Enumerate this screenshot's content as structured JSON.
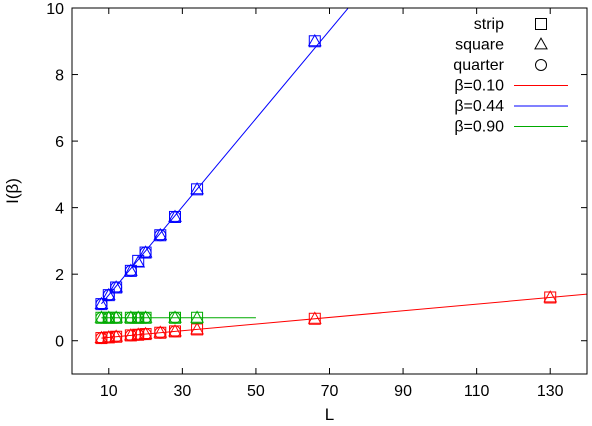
{
  "chart_data": {
    "type": "scatter",
    "title": "",
    "xlabel": "L",
    "ylabel": "I(β)",
    "xlim": [
      0,
      140
    ],
    "ylim": [
      -1,
      10
    ],
    "x_ticks": [
      10,
      30,
      50,
      70,
      90,
      110,
      130
    ],
    "y_ticks": [
      0,
      2,
      4,
      6,
      8,
      10
    ],
    "grid": false,
    "legend_position": "top-right",
    "marker_legend": [
      {
        "name": "strip",
        "marker": "square"
      },
      {
        "name": "square",
        "marker": "triangle"
      },
      {
        "name": "quarter",
        "marker": "circle"
      }
    ],
    "series": [
      {
        "name": "β=0.10",
        "color": "#ff0000",
        "fit_line": {
          "slope": 0.01,
          "intercept": 0.0,
          "x_range": [
            8,
            140
          ]
        },
        "strip": {
          "x": [
            8,
            10,
            12,
            16,
            18,
            20,
            24,
            28,
            34,
            66,
            130
          ],
          "y": [
            0.08,
            0.1,
            0.12,
            0.16,
            0.18,
            0.2,
            0.24,
            0.28,
            0.34,
            0.66,
            1.3
          ]
        },
        "square": {
          "x": [
            8,
            10,
            12,
            16,
            18,
            20,
            24,
            28,
            34,
            66,
            130
          ],
          "y": [
            0.08,
            0.1,
            0.12,
            0.16,
            0.18,
            0.2,
            0.24,
            0.28,
            0.34,
            0.66,
            1.3
          ]
        },
        "quarter": {
          "x": [
            8,
            10,
            12,
            16,
            18,
            20,
            24,
            28
          ],
          "y": [
            0.08,
            0.1,
            0.12,
            0.16,
            0.18,
            0.2,
            0.24,
            0.28
          ]
        }
      },
      {
        "name": "β=0.44",
        "color": "#0000ff",
        "fit_line": {
          "slope": 0.1325,
          "intercept": 0.05,
          "x_range": [
            8,
            75
          ]
        },
        "strip": {
          "x": [
            8,
            10,
            12,
            16,
            18,
            20,
            24,
            28,
            34,
            66
          ],
          "y": [
            1.1,
            1.37,
            1.6,
            2.1,
            2.4,
            2.65,
            3.17,
            3.72,
            4.55,
            9.0
          ]
        },
        "square": {
          "x": [
            8,
            10,
            12,
            16,
            18,
            20,
            24,
            28,
            34,
            66
          ],
          "y": [
            1.1,
            1.37,
            1.6,
            2.1,
            2.35,
            2.65,
            3.17,
            3.72,
            4.55,
            9.0
          ]
        },
        "quarter": {
          "x": [
            8,
            10,
            12,
            16,
            20,
            24,
            28
          ],
          "y": [
            1.1,
            1.37,
            1.6,
            2.1,
            2.65,
            3.17,
            3.72
          ]
        }
      },
      {
        "name": "β=0.90",
        "color": "#00aa00",
        "fit_line": {
          "slope": 0.0,
          "intercept": 0.69,
          "x_range": [
            8,
            50
          ]
        },
        "strip": {
          "x": [
            8,
            10,
            12,
            16,
            18,
            20,
            28,
            34
          ],
          "y": [
            0.69,
            0.69,
            0.69,
            0.69,
            0.69,
            0.69,
            0.69,
            0.69
          ]
        },
        "square": {
          "x": [
            8,
            10,
            12,
            16,
            18,
            20,
            28,
            34
          ],
          "y": [
            0.69,
            0.69,
            0.69,
            0.69,
            0.69,
            0.69,
            0.69,
            0.69
          ]
        },
        "quarter": {
          "x": [
            8,
            10,
            12,
            16,
            18,
            20,
            28
          ],
          "y": [
            0.69,
            0.69,
            0.69,
            0.69,
            0.69,
            0.69,
            0.69
          ]
        }
      }
    ]
  }
}
